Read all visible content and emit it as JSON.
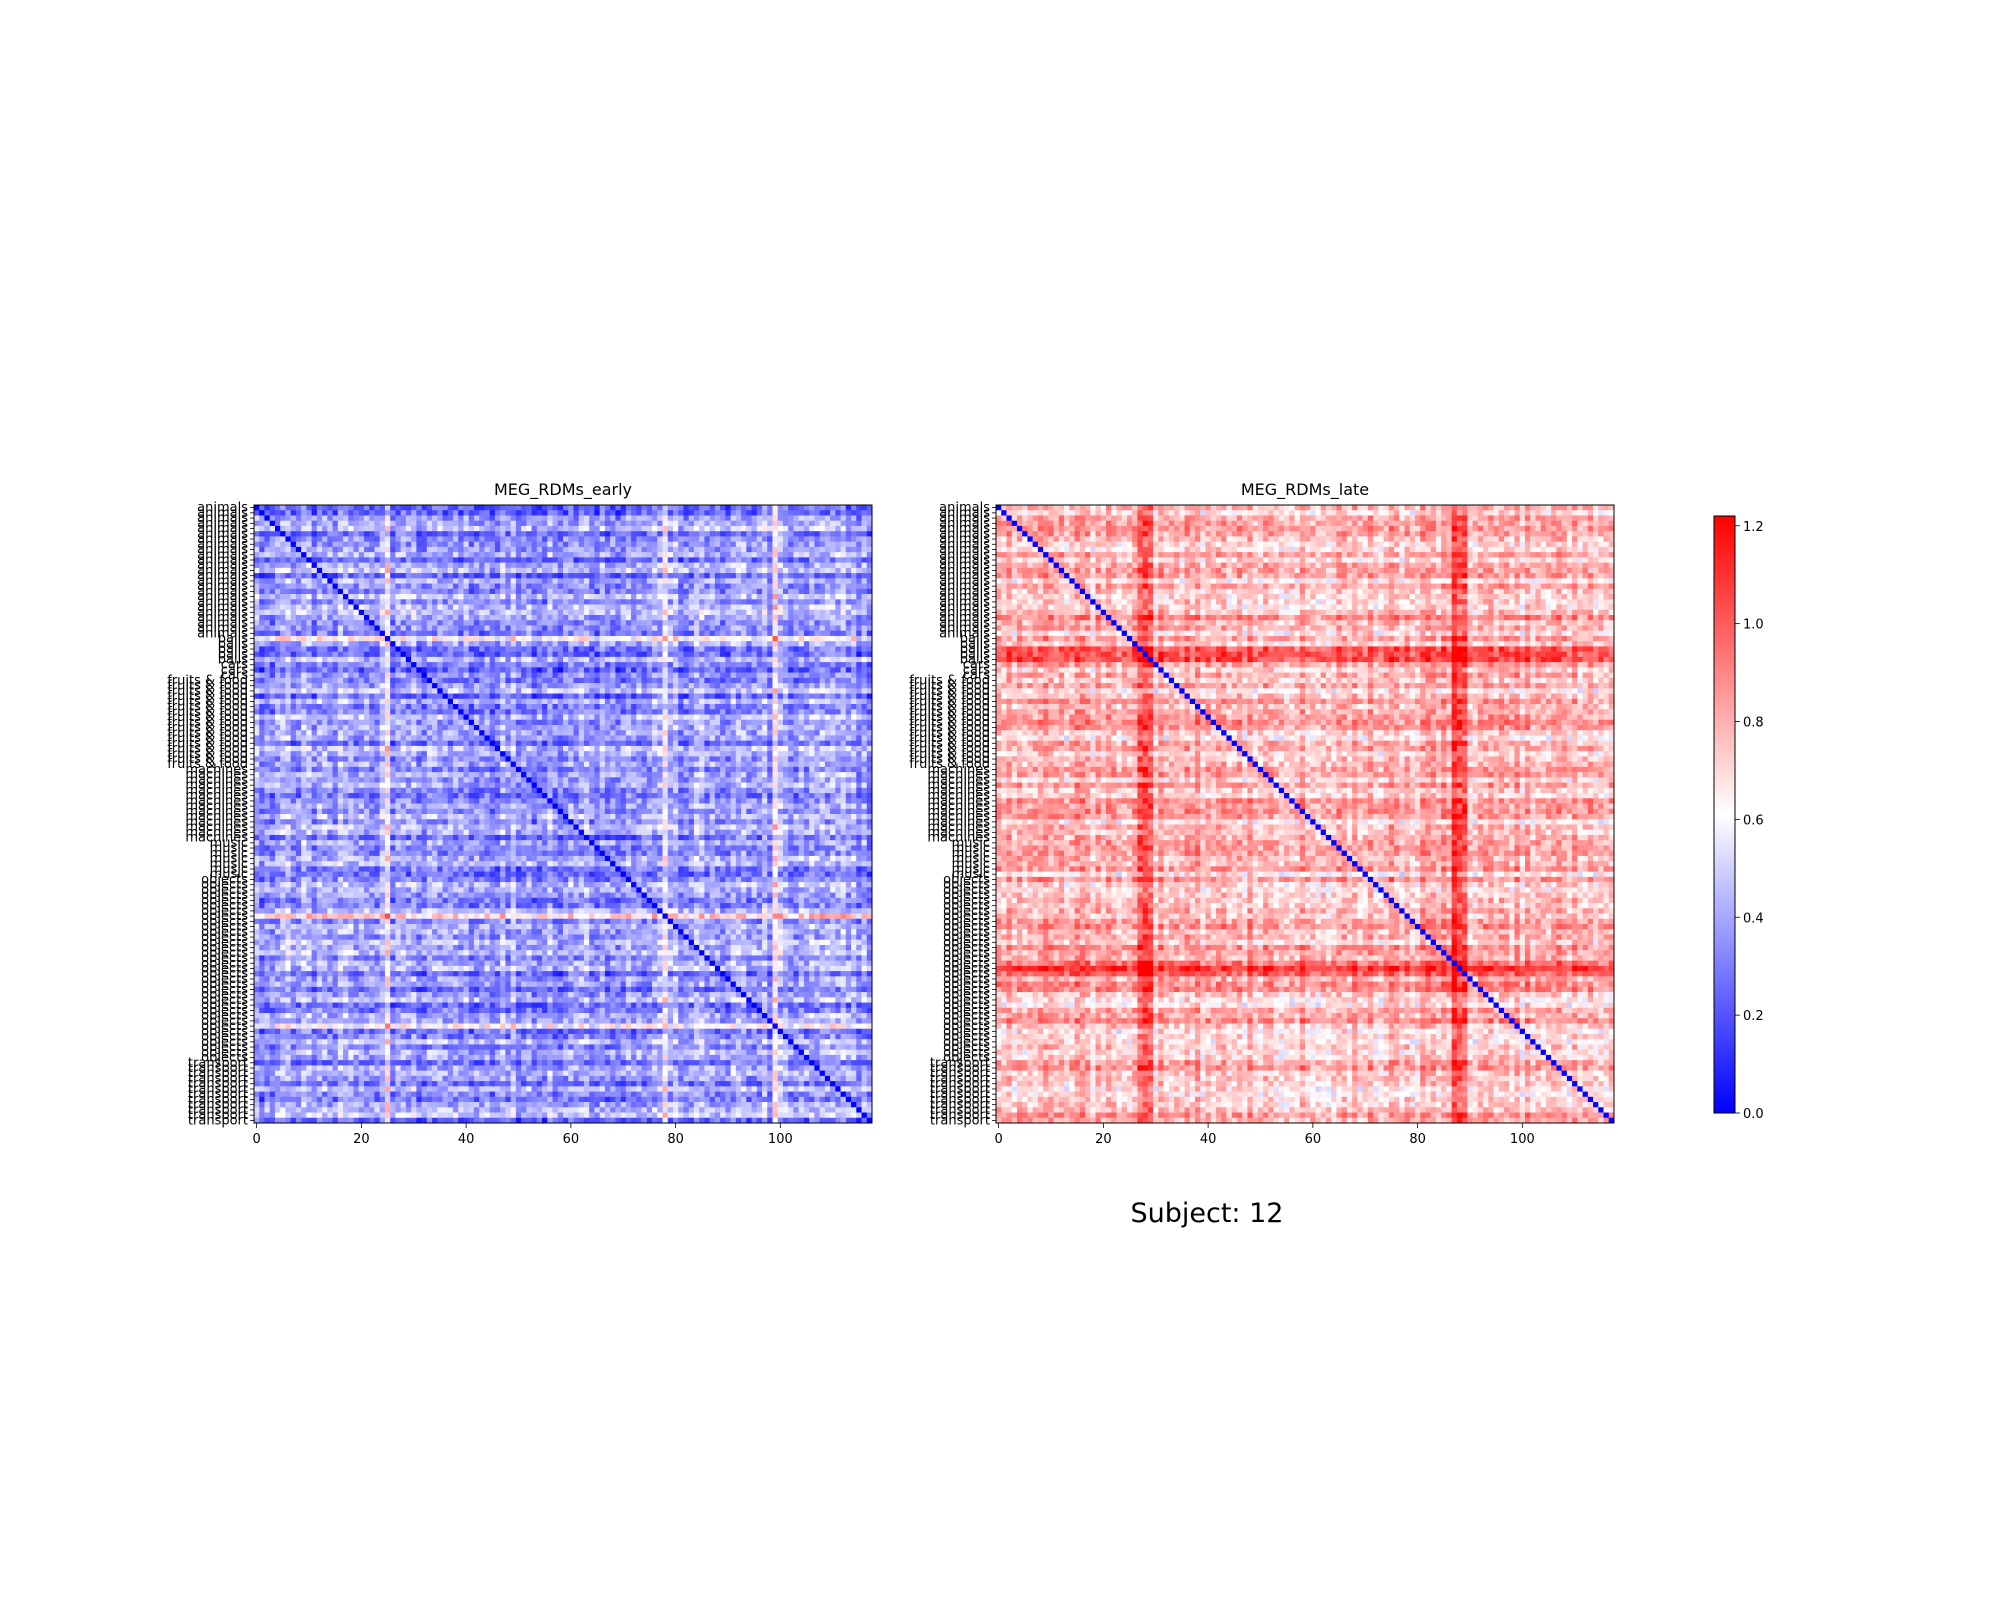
{
  "figure": {
    "suptitle": "Subject: 12"
  },
  "chart_data": [
    {
      "type": "heatmap",
      "title": "MEG_RDMs_early",
      "n": 118,
      "xticks": [
        0,
        20,
        40,
        60,
        80,
        100
      ],
      "yticklabels_categories": [
        {
          "label": "animals",
          "count": 25
        },
        {
          "label": "balls",
          "count": 5
        },
        {
          "label": "cars",
          "count": 3
        },
        {
          "label": "fruits & food",
          "count": 17
        },
        {
          "label": "machines",
          "count": 14
        },
        {
          "label": "music",
          "count": 7
        },
        {
          "label": "objects",
          "count": 35
        },
        {
          "label": "transport",
          "count": 12
        }
      ],
      "value_range": [
        0.0,
        1.22
      ],
      "mean_level": 0.36,
      "diagonal": 0.0,
      "colormap": "bwr",
      "notes_visible_bands_high": [
        25,
        78,
        99
      ]
    },
    {
      "type": "heatmap",
      "title": "MEG_RDMs_late",
      "n": 118,
      "xticks": [
        0,
        20,
        40,
        60,
        80,
        100
      ],
      "yticklabels_categories": [
        {
          "label": "animals",
          "count": 25
        },
        {
          "label": "balls",
          "count": 5
        },
        {
          "label": "cars",
          "count": 3
        },
        {
          "label": "fruits & food",
          "count": 17
        },
        {
          "label": "machines",
          "count": 14
        },
        {
          "label": "music",
          "count": 7
        },
        {
          "label": "objects",
          "count": 35
        },
        {
          "label": "transport",
          "count": 12
        }
      ],
      "value_range": [
        0.0,
        1.22
      ],
      "mean_level": 0.78,
      "diagonal": 0.0,
      "colormap": "bwr",
      "notes_visible_bands_high": [
        28,
        29,
        87,
        88,
        27,
        89
      ]
    }
  ],
  "colorbar": {
    "min": 0.0,
    "max": 1.22,
    "ticks": [
      "0.0",
      "0.2",
      "0.4",
      "0.6",
      "0.8",
      "1.0",
      "1.2"
    ],
    "colors": {
      "low": "#0000ff",
      "mid": "#ffffff",
      "high": "#ff0000"
    }
  }
}
